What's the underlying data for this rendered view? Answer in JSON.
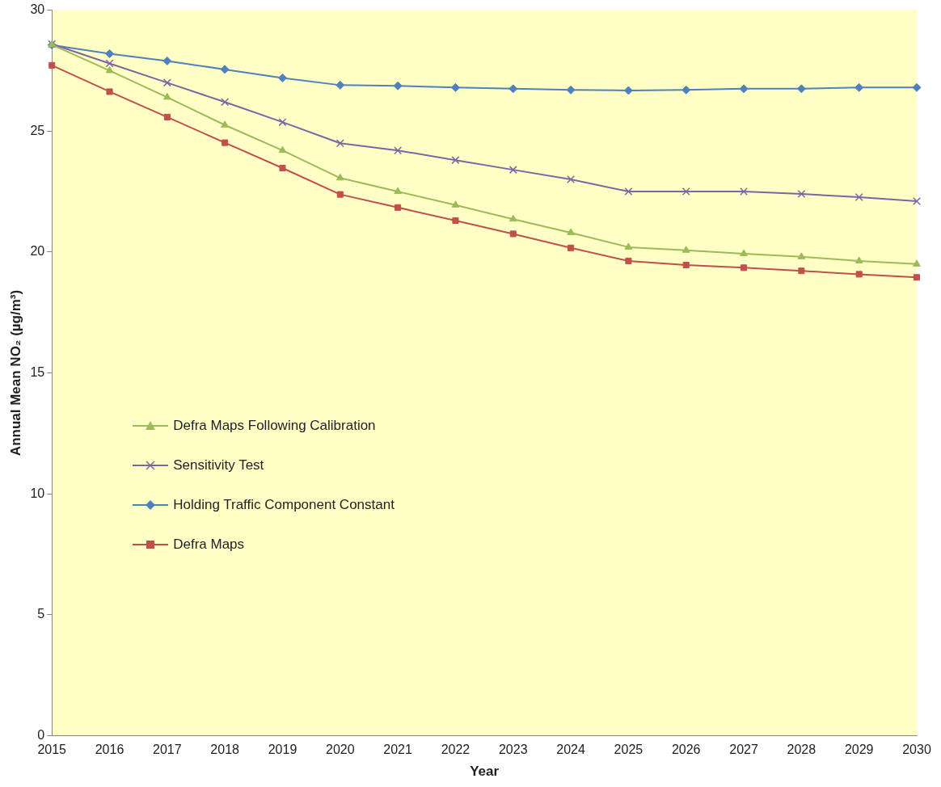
{
  "chart_data": {
    "type": "line",
    "xlabel": "Year",
    "ylabel": "Annual Mean NO₂ (µg/m³)",
    "categories": [
      "2015",
      "2016",
      "2017",
      "2018",
      "2019",
      "2020",
      "2021",
      "2022",
      "2023",
      "2024",
      "2025",
      "2026",
      "2027",
      "2028",
      "2029",
      "2030"
    ],
    "ylim": [
      0,
      30
    ],
    "yticks": [
      0,
      5,
      10,
      15,
      20,
      25,
      30
    ],
    "grid": false,
    "legend": "left",
    "line_style": "solid",
    "series": [
      {
        "name": "Defra Maps Following Calibration",
        "color": "#9bbb59",
        "marker": "triangle",
        "values": [
          28.57,
          27.5,
          26.4,
          25.25,
          24.2,
          23.06,
          22.5,
          21.94,
          21.36,
          20.8,
          20.2,
          20.07,
          19.93,
          19.8,
          19.63,
          19.5
        ]
      },
      {
        "name": "Sensitivity Test",
        "color": "#8064a2",
        "marker": "cross",
        "values": [
          28.6,
          27.8,
          27.0,
          26.2,
          25.37,
          24.5,
          24.2,
          23.8,
          23.4,
          23.0,
          22.5,
          22.5,
          22.5,
          22.4,
          22.27,
          22.1
        ]
      },
      {
        "name": "Holding Traffic Component Constant",
        "color": "#4f81bd",
        "marker": "diamond",
        "values": [
          28.56,
          28.2,
          27.9,
          27.55,
          27.2,
          26.9,
          26.87,
          26.8,
          26.75,
          26.7,
          26.68,
          26.7,
          26.75,
          26.75,
          26.8,
          26.8
        ]
      },
      {
        "name": "Defra Maps",
        "color": "#c0504d",
        "marker": "square",
        "values": [
          27.72,
          26.63,
          25.58,
          24.52,
          23.47,
          22.38,
          21.84,
          21.3,
          20.75,
          20.17,
          19.63,
          19.46,
          19.35,
          19.22,
          19.08,
          18.95
        ]
      }
    ]
  }
}
